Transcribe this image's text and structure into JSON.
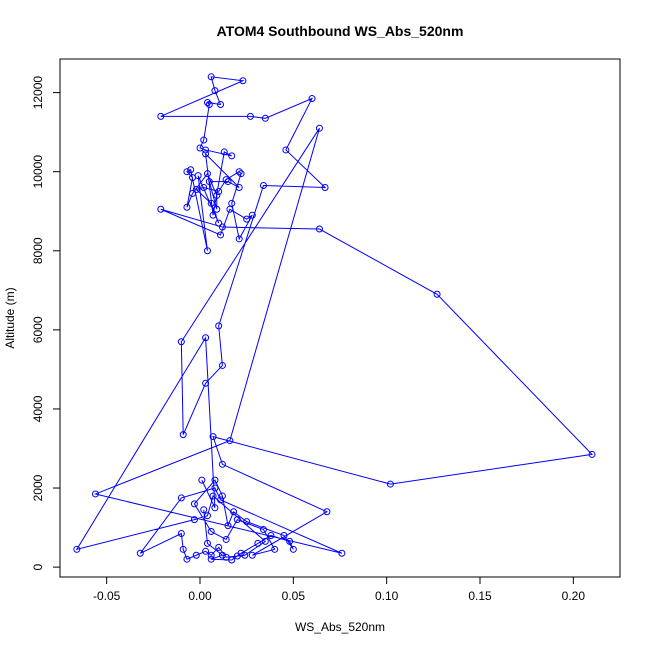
{
  "chart_data": {
    "type": "line",
    "title": "ATOM4 Southbound WS_Abs_520nm",
    "xlabel": "WS_Abs_520nm",
    "ylabel": "Altitude (m)",
    "xlim": [
      -0.075,
      0.225
    ],
    "ylim": [
      -250,
      12850
    ],
    "x_ticks": [
      -0.05,
      0.0,
      0.05,
      0.1,
      0.15,
      0.2
    ],
    "x_tick_labels": [
      "-0.05",
      "0.00",
      "0.05",
      "0.10",
      "0.15",
      "0.20"
    ],
    "y_ticks": [
      0,
      2000,
      4000,
      6000,
      8000,
      10000,
      12000
    ],
    "y_tick_labels": [
      "0",
      "2000",
      "4000",
      "6000",
      "8000",
      "10000",
      "12000"
    ],
    "grid": false,
    "legend": "none",
    "series_color": "#0000ff",
    "markers": "open-circle",
    "points": [
      [
        0.002,
        1450
      ],
      [
        0.004,
        600
      ],
      [
        0.012,
        300
      ],
      [
        0.006,
        200
      ],
      [
        0.017,
        180
      ],
      [
        0.022,
        350
      ],
      [
        0.031,
        600
      ],
      [
        0.038,
        800
      ],
      [
        0.048,
        650
      ],
      [
        0.05,
        450
      ],
      [
        0.045,
        800
      ],
      [
        0.025,
        1150
      ],
      [
        0.018,
        1400
      ],
      [
        0.015,
        1050
      ],
      [
        0.012,
        1800
      ],
      [
        0.008,
        2200
      ],
      [
        -0.003,
        1600
      ],
      [
        0.006,
        900
      ],
      [
        0.014,
        700
      ],
      [
        0.02,
        1200
      ],
      [
        0.034,
        950
      ],
      [
        0.04,
        450
      ],
      [
        0.028,
        300
      ],
      [
        0.068,
        1400
      ],
      [
        0.012,
        2600
      ],
      [
        0.007,
        3300
      ],
      [
        0.102,
        2100
      ],
      [
        0.21,
        2850
      ],
      [
        0.127,
        6900
      ],
      [
        0.064,
        8550
      ],
      [
        0.012,
        8600
      ],
      [
        -0.021,
        9050
      ],
      [
        0.011,
        8400
      ],
      [
        0.016,
        9050
      ],
      [
        0.025,
        8800
      ],
      [
        0.028,
        8900
      ],
      [
        0.021,
        8300
      ],
      [
        0.017,
        9200
      ],
      [
        0.022,
        9950
      ],
      [
        0.021,
        10000
      ],
      [
        0.014,
        9800
      ],
      [
        0.01,
        9500
      ],
      [
        0.002,
        9600
      ],
      [
        -0.002,
        9550
      ],
      [
        0.006,
        9200
      ],
      [
        0.01,
        8700
      ],
      [
        -0.001,
        9900
      ],
      [
        0.004,
        8000
      ],
      [
        -0.005,
        10050
      ],
      [
        -0.007,
        10000
      ],
      [
        -0.004,
        9850
      ],
      [
        -0.007,
        9100
      ],
      [
        -0.004,
        9450
      ],
      [
        0.004,
        9950
      ],
      [
        0.009,
        9400
      ],
      [
        0.009,
        9050
      ],
      [
        0.005,
        9750
      ],
      [
        0.015,
        9750
      ],
      [
        0.021,
        9600
      ],
      [
        0.003,
        10450
      ],
      [
        0.007,
        8900
      ],
      [
        0.013,
        10500
      ],
      [
        0.017,
        10400
      ],
      [
        0.003,
        10550
      ],
      [
        0.0,
        10600
      ],
      [
        0.002,
        10800
      ],
      [
        0.005,
        11700
      ],
      [
        0.004,
        11750
      ],
      [
        0.011,
        11700
      ],
      [
        0.008,
        12050
      ],
      [
        0.006,
        12400
      ],
      [
        0.023,
        12300
      ],
      [
        -0.021,
        11400
      ],
      [
        0.027,
        11400
      ],
      [
        0.035,
        11350
      ],
      [
        0.06,
        11850
      ],
      [
        0.046,
        10550
      ],
      [
        0.067,
        9600
      ],
      [
        0.034,
        9650
      ],
      [
        0.01,
        6100
      ],
      [
        0.012,
        5100
      ],
      [
        0.003,
        4650
      ],
      [
        -0.009,
        3350
      ],
      [
        -0.01,
        5700
      ],
      [
        0.064,
        11100
      ],
      [
        0.016,
        3200
      ],
      [
        -0.056,
        1850
      ],
      [
        0.076,
        350
      ],
      [
        0.011,
        1700
      ],
      [
        0.008,
        2000
      ],
      [
        -0.01,
        1750
      ],
      [
        -0.032,
        350
      ],
      [
        -0.01,
        850
      ],
      [
        -0.009,
        450
      ],
      [
        -0.007,
        200
      ],
      [
        -0.002,
        300
      ],
      [
        0.003,
        400
      ],
      [
        0.006,
        300
      ],
      [
        0.01,
        500
      ],
      [
        0.014,
        250
      ],
      [
        0.02,
        280
      ],
      [
        0.024,
        300
      ],
      [
        0.035,
        650
      ],
      [
        0.007,
        1800
      ],
      [
        0.004,
        1300
      ],
      [
        -0.003,
        1200
      ],
      [
        -0.066,
        450
      ],
      [
        0.003,
        5800
      ],
      [
        0.008,
        1500
      ],
      [
        0.001,
        2200
      ]
    ]
  }
}
